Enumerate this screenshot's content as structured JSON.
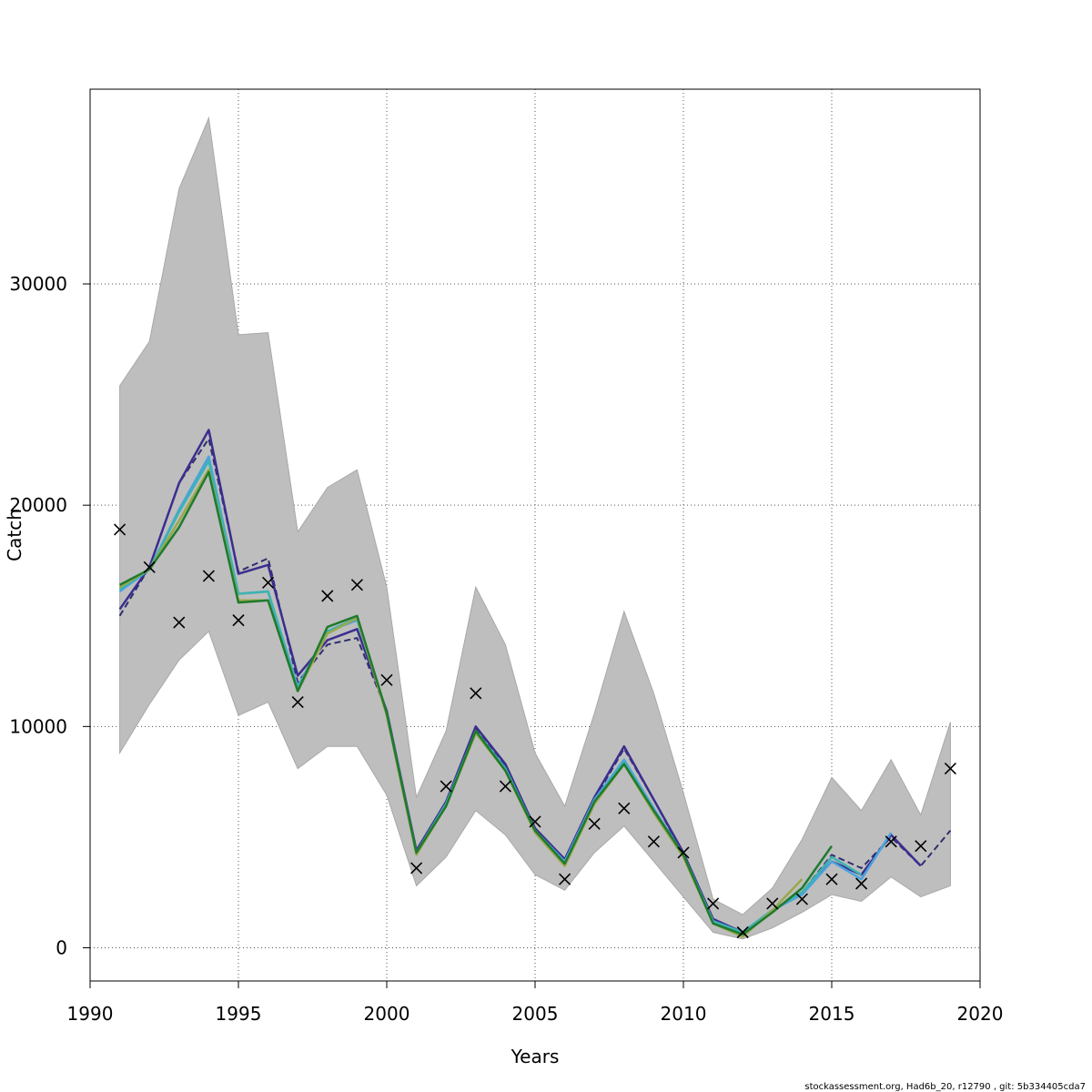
{
  "chart_data": {
    "type": "line",
    "xlabel": "Years",
    "ylabel": "Catch",
    "xlim": [
      1990,
      2020
    ],
    "ylim": [
      -1500,
      38800
    ],
    "x_ticks": [
      1990,
      1995,
      2000,
      2005,
      2010,
      2015,
      2020
    ],
    "y_ticks": [
      0,
      10000,
      20000,
      30000
    ],
    "grid": true,
    "footer": "stockassessment.org, Had6b_20, r12790 , git: 5b334405cda7",
    "band": {
      "years": [
        1991,
        1992,
        1993,
        1994,
        1995,
        1996,
        1997,
        1998,
        1999,
        2000,
        2001,
        2002,
        2003,
        2004,
        2005,
        2006,
        2007,
        2008,
        2009,
        2010,
        2011,
        2012,
        2013,
        2014,
        2015,
        2016,
        2017,
        2018,
        2019
      ],
      "upper": [
        25400,
        27400,
        34300,
        37500,
        27700,
        27800,
        18800,
        20800,
        21600,
        16300,
        6800,
        9800,
        16300,
        13700,
        8800,
        6400,
        10600,
        15200,
        11500,
        7000,
        2200,
        1500,
        2700,
        4900,
        7700,
        6200,
        8500,
        6000,
        10200
      ],
      "lower": [
        8800,
        11000,
        13000,
        14300,
        10500,
        11100,
        8100,
        9100,
        9100,
        6900,
        2800,
        4100,
        6200,
        5100,
        3300,
        2600,
        4300,
        5500,
        3900,
        2300,
        700,
        400,
        900,
        1600,
        2400,
        2100,
        3200,
        2300,
        2800
      ],
      "color": "#bebebe"
    },
    "observed": {
      "years": [
        1991,
        1992,
        1993,
        1994,
        1995,
        1996,
        1997,
        1998,
        1999,
        2000,
        2001,
        2002,
        2003,
        2004,
        2005,
        2006,
        2007,
        2008,
        2009,
        2010,
        2011,
        2012,
        2013,
        2014,
        2015,
        2016,
        2017,
        2018,
        2019
      ],
      "values": [
        18900,
        17200,
        14700,
        16800,
        14800,
        16500,
        11100,
        15900,
        16400,
        12100,
        3600,
        7300,
        11500,
        7300,
        5700,
        3100,
        5600,
        6300,
        4800,
        4300,
        2000,
        700,
        2000,
        2200,
        3100,
        2900,
        4800,
        4600,
        8100
      ]
    },
    "series": [
      {
        "color": "#2e2e6e",
        "dashed": true,
        "years": [
          1991,
          1992,
          1993,
          1994,
          1995,
          1996,
          1997,
          1998,
          1999,
          2000,
          2001,
          2002,
          2003,
          2004,
          2005,
          2006,
          2007,
          2008,
          2009,
          2010,
          2011,
          2012,
          2013,
          2014,
          2015,
          2016,
          2017,
          2018,
          2019
        ],
        "values": [
          15000,
          17200,
          21000,
          23000,
          17000,
          17600,
          12000,
          13700,
          14000,
          10700,
          4400,
          6600,
          9900,
          8200,
          5400,
          3900,
          6700,
          9000,
          6700,
          4200,
          1300,
          700,
          1700,
          2500,
          4200,
          3600,
          5000,
          3700,
          5300
        ]
      },
      {
        "color": "#3b2d8f",
        "dashed": false,
        "years": [
          1991,
          1992,
          1993,
          1994,
          1995,
          1996,
          1997,
          1998,
          1999,
          2000,
          2001,
          2002,
          2003,
          2004,
          2005,
          2006,
          2007,
          2008,
          2009,
          2010,
          2011,
          2012,
          2013,
          2014,
          2015,
          2016,
          2017,
          2018
        ],
        "values": [
          15300,
          17200,
          21000,
          23400,
          16900,
          17300,
          12300,
          13900,
          14400,
          10700,
          4400,
          6600,
          10000,
          8300,
          5400,
          4000,
          6800,
          9100,
          6700,
          4300,
          1300,
          700,
          1700,
          2500,
          3900,
          3300,
          5100,
          3700
        ]
      },
      {
        "color": "#4aa3df",
        "dashed": false,
        "years": [
          1991,
          1992,
          1993,
          1994,
          1995,
          1996,
          1997,
          1998,
          1999,
          2000,
          2001,
          2002,
          2003,
          2004,
          2005,
          2006,
          2007,
          2008,
          2009,
          2010,
          2011,
          2012,
          2013,
          2014,
          2015,
          2016,
          2017
        ],
        "values": [
          16100,
          17100,
          19800,
          22200,
          16000,
          16100,
          11800,
          14300,
          14800,
          10600,
          4300,
          6500,
          9800,
          8100,
          5300,
          3900,
          6700,
          8500,
          6300,
          4200,
          1200,
          700,
          1700,
          2400,
          3900,
          3100,
          5200
        ]
      },
      {
        "color": "#3cb3b0",
        "dashed": false,
        "years": [
          1991,
          1992,
          1993,
          1994,
          1995,
          1996,
          1997,
          1998,
          1999,
          2000,
          2001,
          2002,
          2003,
          2004,
          2005,
          2006,
          2007,
          2008,
          2009,
          2010,
          2011,
          2012,
          2013,
          2014,
          2015,
          2016
        ],
        "values": [
          16200,
          17100,
          19700,
          22000,
          16000,
          16100,
          11700,
          14300,
          14900,
          10600,
          4300,
          6500,
          9800,
          8100,
          5300,
          3800,
          6600,
          8400,
          6200,
          4200,
          1200,
          700,
          1700,
          2500,
          4100,
          3300
        ]
      },
      {
        "color": "#9aa84a",
        "dashed": false,
        "years": [
          1991,
          1992,
          1993,
          1994,
          1995,
          1996,
          1997,
          1998,
          1999,
          2000,
          2001,
          2002,
          2003,
          2004,
          2005,
          2006,
          2007,
          2008,
          2009,
          2010,
          2011,
          2012,
          2013,
          2014
        ],
        "values": [
          16300,
          17100,
          19300,
          21600,
          15700,
          15700,
          11600,
          14200,
          14900,
          10500,
          4200,
          6400,
          9700,
          8000,
          5200,
          3700,
          6500,
          8300,
          6100,
          4100,
          1100,
          500,
          1700,
          3100
        ]
      },
      {
        "color": "#1f7a2e",
        "dashed": false,
        "years": [
          1991,
          1992,
          1993,
          1994,
          1995,
          1996,
          1997,
          1998,
          1999,
          2000,
          2001,
          2002,
          2003,
          2004,
          2005,
          2006,
          2007,
          2008,
          2009,
          2010,
          2011,
          2012,
          2013,
          2014,
          2015
        ],
        "values": [
          16400,
          17100,
          19000,
          21500,
          15600,
          15700,
          11600,
          14500,
          15000,
          10600,
          4300,
          6400,
          9800,
          8000,
          5300,
          3800,
          6600,
          8300,
          6200,
          4200,
          1100,
          600,
          1600,
          2700,
          4600
        ]
      }
    ]
  }
}
